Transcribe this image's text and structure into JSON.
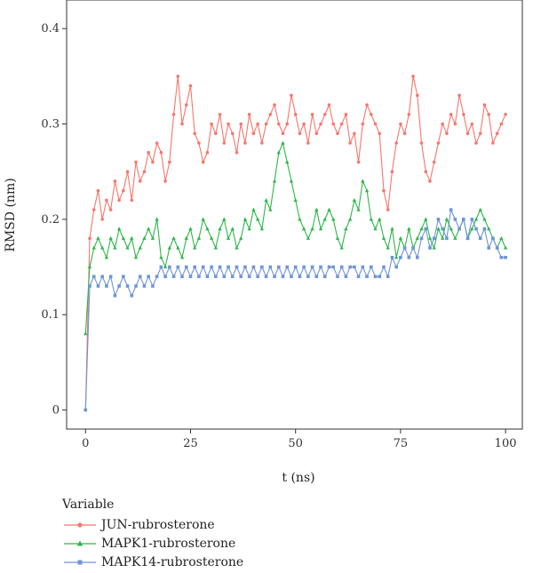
{
  "chart_data": {
    "type": "line",
    "xlabel": "t (ns)",
    "ylabel": "RMSD (nm)",
    "xlim": [
      -4.5,
      104
    ],
    "ylim": [
      -0.02,
      0.43
    ],
    "xticks": [
      0,
      25,
      50,
      75,
      100
    ],
    "xtick_labels": [
      "0",
      "25",
      "50",
      "75",
      "100"
    ],
    "yticks": [
      0,
      0.1,
      0.2,
      0.3,
      0.4
    ],
    "ytick_labels": [
      "0",
      "0.1",
      "0.2",
      "0.3",
      "0.4"
    ],
    "grid": false,
    "legend_placement": "bottom-left",
    "legend_title": "Variable",
    "series": [
      {
        "name": "JUN-rubrosterone",
        "color": "#F8766D",
        "marker": "circle",
        "x": [
          0,
          1,
          2,
          3,
          4,
          5,
          6,
          7,
          8,
          9,
          10,
          11,
          12,
          13,
          14,
          15,
          16,
          17,
          18,
          19,
          20,
          21,
          22,
          23,
          24,
          25,
          26,
          27,
          28,
          29,
          30,
          31,
          32,
          33,
          34,
          35,
          36,
          37,
          38,
          39,
          40,
          41,
          42,
          43,
          44,
          45,
          46,
          47,
          48,
          49,
          50,
          51,
          52,
          53,
          54,
          55,
          56,
          57,
          58,
          59,
          60,
          61,
          62,
          63,
          64,
          65,
          66,
          67,
          68,
          69,
          70,
          71,
          72,
          73,
          74,
          75,
          76,
          77,
          78,
          79,
          80,
          81,
          82,
          83,
          84,
          85,
          86,
          87,
          88,
          89,
          90,
          91,
          92,
          93,
          94,
          95,
          96,
          97,
          98,
          99,
          100
        ],
        "y": [
          0.0,
          0.18,
          0.21,
          0.23,
          0.2,
          0.22,
          0.21,
          0.24,
          0.22,
          0.23,
          0.25,
          0.22,
          0.26,
          0.24,
          0.25,
          0.27,
          0.26,
          0.28,
          0.27,
          0.24,
          0.26,
          0.31,
          0.35,
          0.3,
          0.32,
          0.34,
          0.29,
          0.28,
          0.26,
          0.27,
          0.3,
          0.29,
          0.31,
          0.28,
          0.3,
          0.29,
          0.27,
          0.3,
          0.28,
          0.31,
          0.29,
          0.3,
          0.28,
          0.3,
          0.31,
          0.32,
          0.3,
          0.29,
          0.3,
          0.33,
          0.31,
          0.29,
          0.3,
          0.28,
          0.31,
          0.29,
          0.3,
          0.31,
          0.32,
          0.3,
          0.29,
          0.3,
          0.31,
          0.28,
          0.29,
          0.26,
          0.3,
          0.32,
          0.31,
          0.3,
          0.29,
          0.23,
          0.21,
          0.25,
          0.28,
          0.3,
          0.29,
          0.31,
          0.35,
          0.33,
          0.28,
          0.25,
          0.24,
          0.26,
          0.28,
          0.3,
          0.29,
          0.31,
          0.3,
          0.33,
          0.31,
          0.29,
          0.3,
          0.28,
          0.29,
          0.32,
          0.31,
          0.28,
          0.29,
          0.3,
          0.31
        ]
      },
      {
        "name": "MAPK1-rubrosterone",
        "color": "#2DB84A",
        "marker": "triangle",
        "x": [
          0,
          1,
          2,
          3,
          4,
          5,
          6,
          7,
          8,
          9,
          10,
          11,
          12,
          13,
          14,
          15,
          16,
          17,
          18,
          19,
          20,
          21,
          22,
          23,
          24,
          25,
          26,
          27,
          28,
          29,
          30,
          31,
          32,
          33,
          34,
          35,
          36,
          37,
          38,
          39,
          40,
          41,
          42,
          43,
          44,
          45,
          46,
          47,
          48,
          49,
          50,
          51,
          52,
          53,
          54,
          55,
          56,
          57,
          58,
          59,
          60,
          61,
          62,
          63,
          64,
          65,
          66,
          67,
          68,
          69,
          70,
          71,
          72,
          73,
          74,
          75,
          76,
          77,
          78,
          79,
          80,
          81,
          82,
          83,
          84,
          85,
          86,
          87,
          88,
          89,
          90,
          91,
          92,
          93,
          94,
          95,
          96,
          97,
          98,
          99,
          100
        ],
        "y": [
          0.08,
          0.15,
          0.17,
          0.18,
          0.17,
          0.16,
          0.18,
          0.17,
          0.19,
          0.18,
          0.17,
          0.18,
          0.16,
          0.17,
          0.18,
          0.19,
          0.18,
          0.2,
          0.16,
          0.15,
          0.17,
          0.18,
          0.17,
          0.16,
          0.18,
          0.19,
          0.17,
          0.18,
          0.2,
          0.19,
          0.18,
          0.17,
          0.19,
          0.2,
          0.18,
          0.19,
          0.17,
          0.18,
          0.2,
          0.19,
          0.21,
          0.2,
          0.19,
          0.22,
          0.21,
          0.24,
          0.27,
          0.28,
          0.26,
          0.24,
          0.22,
          0.2,
          0.19,
          0.18,
          0.19,
          0.21,
          0.19,
          0.2,
          0.21,
          0.2,
          0.18,
          0.17,
          0.19,
          0.2,
          0.22,
          0.21,
          0.24,
          0.23,
          0.2,
          0.19,
          0.2,
          0.18,
          0.17,
          0.19,
          0.16,
          0.18,
          0.17,
          0.19,
          0.17,
          0.18,
          0.19,
          0.2,
          0.18,
          0.17,
          0.19,
          0.18,
          0.2,
          0.19,
          0.18,
          0.19,
          0.2,
          0.18,
          0.19,
          0.2,
          0.21,
          0.2,
          0.19,
          0.18,
          0.17,
          0.18,
          0.17
        ]
      },
      {
        "name": "MAPK14-rubrosterone",
        "color": "#6F95D6",
        "marker": "square",
        "x": [
          0,
          1,
          2,
          3,
          4,
          5,
          6,
          7,
          8,
          9,
          10,
          11,
          12,
          13,
          14,
          15,
          16,
          17,
          18,
          19,
          20,
          21,
          22,
          23,
          24,
          25,
          26,
          27,
          28,
          29,
          30,
          31,
          32,
          33,
          34,
          35,
          36,
          37,
          38,
          39,
          40,
          41,
          42,
          43,
          44,
          45,
          46,
          47,
          48,
          49,
          50,
          51,
          52,
          53,
          54,
          55,
          56,
          57,
          58,
          59,
          60,
          61,
          62,
          63,
          64,
          65,
          66,
          67,
          68,
          69,
          70,
          71,
          72,
          73,
          74,
          75,
          76,
          77,
          78,
          79,
          80,
          81,
          82,
          83,
          84,
          85,
          86,
          87,
          88,
          89,
          90,
          91,
          92,
          93,
          94,
          95,
          96,
          97,
          98,
          99,
          100
        ],
        "y": [
          0.0,
          0.13,
          0.14,
          0.13,
          0.14,
          0.13,
          0.14,
          0.12,
          0.13,
          0.14,
          0.13,
          0.12,
          0.13,
          0.14,
          0.13,
          0.14,
          0.13,
          0.14,
          0.15,
          0.14,
          0.15,
          0.14,
          0.15,
          0.14,
          0.15,
          0.14,
          0.15,
          0.14,
          0.15,
          0.14,
          0.15,
          0.14,
          0.15,
          0.14,
          0.15,
          0.14,
          0.15,
          0.14,
          0.15,
          0.14,
          0.15,
          0.14,
          0.15,
          0.14,
          0.15,
          0.14,
          0.15,
          0.14,
          0.15,
          0.14,
          0.15,
          0.14,
          0.15,
          0.14,
          0.15,
          0.14,
          0.15,
          0.14,
          0.15,
          0.15,
          0.14,
          0.15,
          0.14,
          0.15,
          0.15,
          0.14,
          0.15,
          0.14,
          0.15,
          0.14,
          0.14,
          0.15,
          0.14,
          0.16,
          0.15,
          0.16,
          0.17,
          0.16,
          0.17,
          0.16,
          0.18,
          0.19,
          0.17,
          0.18,
          0.2,
          0.19,
          0.18,
          0.21,
          0.2,
          0.19,
          0.2,
          0.18,
          0.2,
          0.19,
          0.18,
          0.19,
          0.17,
          0.18,
          0.17,
          0.16,
          0.16
        ]
      }
    ]
  }
}
